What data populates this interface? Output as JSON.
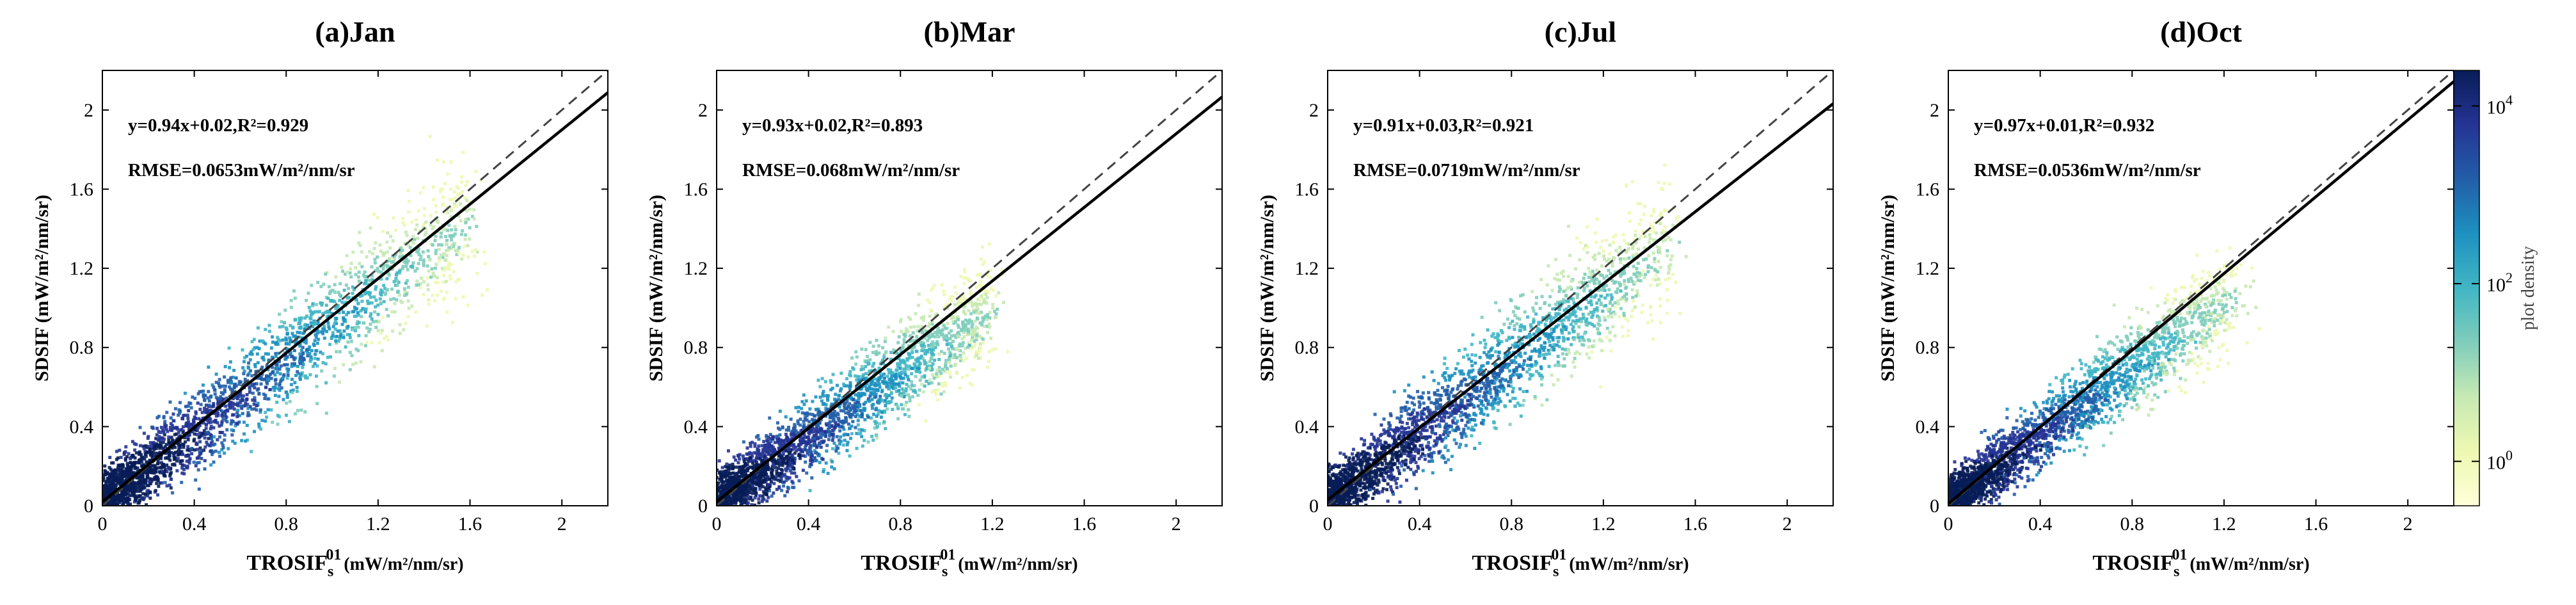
{
  "chart_data": [
    {
      "type": "scatter",
      "title": "(a)Jan",
      "xlabel": {
        "main": "TROSIF",
        "sub": "s",
        "sup": "01",
        "unit": "(mW/m²/nm/sr)"
      },
      "ylabel": "SDSIF (mW/m²/nm/sr)",
      "xlim": [
        0,
        2.2
      ],
      "ylim": [
        0,
        2.2
      ],
      "xticks": [
        "0",
        "0.4",
        "0.8",
        "1.2",
        "1.6",
        "2"
      ],
      "yticks": [
        "0",
        "0.4",
        "0.8",
        "1.2",
        "1.6",
        "2"
      ],
      "equation": "y=0.94x+0.02,R²=0.929",
      "rmse": "RMSE=0.0653mW/m²/nm/sr",
      "fit": {
        "slope": 0.94,
        "intercept": 0.02
      },
      "one_to_one": true,
      "density_cloud": {
        "xmax": 1.6,
        "spread": 0.13,
        "tilt": 0.9
      }
    },
    {
      "type": "scatter",
      "title": "(b)Mar",
      "xlabel": {
        "main": "TROSIF",
        "sub": "s",
        "sup": "01",
        "unit": "(mW/m²/nm/sr)"
      },
      "ylabel": "SDSIF (mW/m²/nm/sr)",
      "xlim": [
        0,
        2.2
      ],
      "ylim": [
        0,
        2.2
      ],
      "xticks": [
        "0",
        "0.4",
        "0.8",
        "1.2",
        "1.6",
        "2"
      ],
      "yticks": [
        "0",
        "0.4",
        "0.8",
        "1.2",
        "1.6",
        "2"
      ],
      "equation": "y=0.93x+0.02,R²=0.893",
      "rmse": "RMSE=0.068mW/m²/nm/sr",
      "fit": {
        "slope": 0.93,
        "intercept": 0.02
      },
      "one_to_one": true,
      "density_cloud": {
        "xmax": 1.2,
        "spread": 0.12,
        "tilt": 0.82
      }
    },
    {
      "type": "scatter",
      "title": "(c)Jul",
      "xlabel": {
        "main": "TROSIF",
        "sub": "s",
        "sup": "01",
        "unit": "(mW/m²/nm/sr)"
      },
      "ylabel": "SDSIF (mW/m²/nm/sr)",
      "xlim": [
        0,
        2.2
      ],
      "ylim": [
        0,
        2.2
      ],
      "xticks": [
        "0",
        "0.4",
        "0.8",
        "1.2",
        "1.6",
        "2"
      ],
      "yticks": [
        "0",
        "0.4",
        "0.8",
        "1.2",
        "1.6",
        "2"
      ],
      "equation": "y=0.91x+0.03,R²=0.921",
      "rmse": "RMSE=0.0719mW/m²/nm/sr",
      "fit": {
        "slope": 0.91,
        "intercept": 0.03
      },
      "one_to_one": true,
      "density_cloud": {
        "xmax": 1.5,
        "spread": 0.13,
        "tilt": 0.88
      }
    },
    {
      "type": "scatter",
      "title": "(d)Oct",
      "xlabel": {
        "main": "TROSIF",
        "sub": "s",
        "sup": "01",
        "unit": "(mW/m²/nm/sr)"
      },
      "ylabel": "SDSIF (mW/m²/nm/sr)",
      "xlim": [
        0,
        2.2
      ],
      "ylim": [
        0,
        2.2
      ],
      "xticks": [
        "0",
        "0.4",
        "0.8",
        "1.2",
        "1.6",
        "2"
      ],
      "yticks": [
        "0",
        "0.4",
        "0.8",
        "1.2",
        "1.6",
        "2"
      ],
      "equation": "y=0.97x+0.01,R²=0.932",
      "rmse": "RMSE=0.0536mW/m²/nm/sr",
      "fit": {
        "slope": 0.97,
        "intercept": 0.01
      },
      "one_to_one": true,
      "density_cloud": {
        "xmax": 1.25,
        "spread": 0.11,
        "tilt": 0.85
      }
    }
  ],
  "colorbar": {
    "label": "plot density",
    "ticks": [
      {
        "base": "10",
        "exp": "0",
        "log": 0
      },
      {
        "base": "10",
        "exp": "2",
        "log": 2
      },
      {
        "base": "10",
        "exp": "4",
        "log": 4
      }
    ],
    "range_log": [
      -0.5,
      4.4
    ],
    "colors": [
      "#ffffd9",
      "#edf8b1",
      "#c7e9b4",
      "#7fcdbb",
      "#41b6c4",
      "#1d91c0",
      "#225ea8",
      "#253494",
      "#081d58"
    ]
  }
}
